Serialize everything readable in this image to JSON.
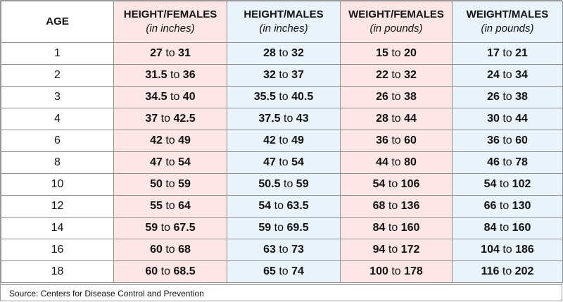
{
  "headers": [
    {
      "title": "AGE",
      "sub": ""
    },
    {
      "title": "HEIGHT/FEMALES",
      "sub": "(in inches)"
    },
    {
      "title": "HEIGHT/MALES",
      "sub": "(in inches)"
    },
    {
      "title": "WEIGHT/FEMALES",
      "sub": "(in pounds)"
    },
    {
      "title": "WEIGHT/MALES",
      "sub": "(in pounds)"
    }
  ],
  "connector": "to",
  "rows": [
    {
      "age": "1",
      "hf": [
        "27",
        "31"
      ],
      "hm": [
        "28",
        "32"
      ],
      "wf": [
        "15",
        "20"
      ],
      "wm": [
        "17",
        "21"
      ]
    },
    {
      "age": "2",
      "hf": [
        "31.5",
        "36"
      ],
      "hm": [
        "32",
        "37"
      ],
      "wf": [
        "22",
        "32"
      ],
      "wm": [
        "24",
        "34"
      ]
    },
    {
      "age": "3",
      "hf": [
        "34.5",
        "40"
      ],
      "hm": [
        "35.5",
        "40.5"
      ],
      "wf": [
        "26",
        "38"
      ],
      "wm": [
        "26",
        "38"
      ]
    },
    {
      "age": "4",
      "hf": [
        "37",
        "42.5"
      ],
      "hm": [
        "37.5",
        "43"
      ],
      "wf": [
        "28",
        "44"
      ],
      "wm": [
        "30",
        "44"
      ]
    },
    {
      "age": "6",
      "hf": [
        "42",
        "49"
      ],
      "hm": [
        "42",
        "49"
      ],
      "wf": [
        "36",
        "60"
      ],
      "wm": [
        "36",
        "60"
      ]
    },
    {
      "age": "8",
      "hf": [
        "47",
        "54"
      ],
      "hm": [
        "47",
        "54"
      ],
      "wf": [
        "44",
        "80"
      ],
      "wm": [
        "46",
        "78"
      ]
    },
    {
      "age": "10",
      "hf": [
        "50",
        "59"
      ],
      "hm": [
        "50.5",
        "59"
      ],
      "wf": [
        "54",
        "106"
      ],
      "wm": [
        "54",
        "102"
      ]
    },
    {
      "age": "12",
      "hf": [
        "55",
        "64"
      ],
      "hm": [
        "54",
        "63.5"
      ],
      "wf": [
        "68",
        "136"
      ],
      "wm": [
        "66",
        "130"
      ]
    },
    {
      "age": "14",
      "hf": [
        "59",
        "67.5"
      ],
      "hm": [
        "59",
        "69.5"
      ],
      "wf": [
        "84",
        "160"
      ],
      "wm": [
        "84",
        "160"
      ]
    },
    {
      "age": "16",
      "hf": [
        "60",
        "68"
      ],
      "hm": [
        "63",
        "73"
      ],
      "wf": [
        "94",
        "172"
      ],
      "wm": [
        "104",
        "186"
      ]
    },
    {
      "age": "18",
      "hf": [
        "60",
        "68.5"
      ],
      "hm": [
        "65",
        "74"
      ],
      "wf": [
        "100",
        "178"
      ],
      "wm": [
        "116",
        "202"
      ]
    }
  ],
  "source": "Source: Centers for Disease Control and Prevention",
  "colors": {
    "female_bg": "#fde6e5",
    "male_bg": "#e8f3fb"
  }
}
